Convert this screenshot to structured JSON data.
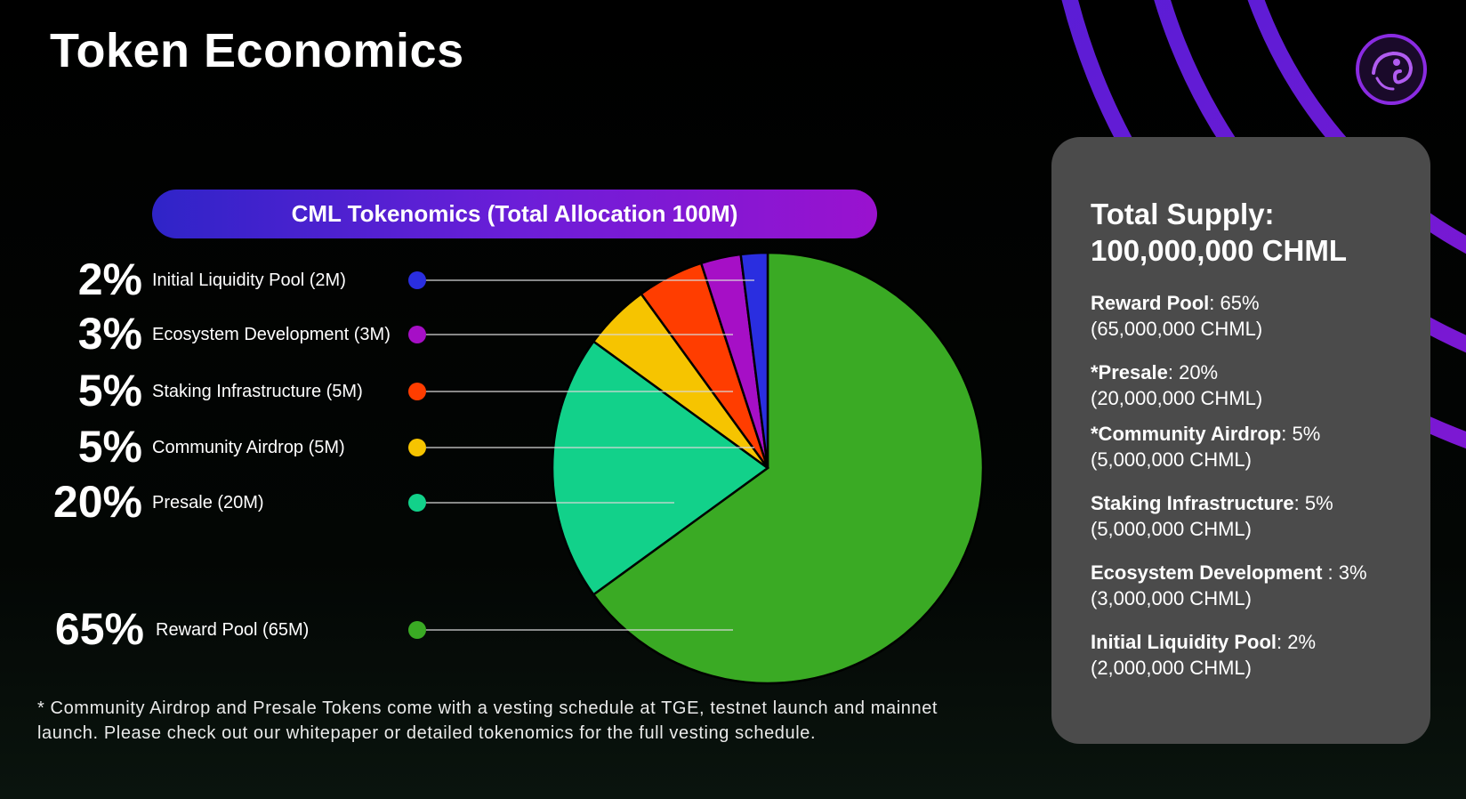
{
  "title": "Token Economics",
  "colors": {
    "banner_start": "#2f24c8",
    "banner_end": "#9a12cf",
    "panel_bg": "#4b4b4b",
    "arc": "#5a1fd0"
  },
  "logo_icon": "chameleon-logo-icon",
  "chart_data": {
    "type": "pie",
    "title": "CML Tokenomics (Total Allocation 100M)",
    "total": "100M",
    "slices": [
      {
        "label": "Reward Pool (65M)",
        "percent_label": "65%",
        "value": 65,
        "color": "#3aaa24"
      },
      {
        "label": "Presale (20M)",
        "percent_label": "20%",
        "value": 20,
        "color": "#12d18a"
      },
      {
        "label": "Community Airdrop (5M)",
        "percent_label": "5%",
        "value": 5,
        "color": "#f6c400"
      },
      {
        "label": "Staking Infrastructure (5M)",
        "percent_label": "5%",
        "value": 5,
        "color": "#ff3d00"
      },
      {
        "label": "Ecosystem Development (3M)",
        "percent_label": "3%",
        "value": 3,
        "color": "#a60fc6"
      },
      {
        "label": "Initial Liquidity Pool (2M)",
        "percent_label": "2%",
        "value": 2,
        "color": "#2a2ee0"
      }
    ],
    "legend_order": [
      5,
      4,
      3,
      2,
      1,
      0
    ]
  },
  "footnote": "* Community Airdrop and Presale Tokens come with a vesting schedule at TGE, testnet launch and mainnet launch. Please check out our whitepaper or detailed tokenomics for the full vesting schedule.",
  "supply_panel": {
    "title": "Total Supply:\n100,000,000 CHML",
    "title_line1": "Total Supply:",
    "title_line2": "100,000,000 CHML",
    "items": [
      {
        "name": "Reward Pool",
        "value": ": 65%",
        "amount": "(65,000,000 CHML)"
      },
      {
        "name": "*Presale",
        "value": ": 20%",
        "amount": "(20,000,000 CHML)"
      },
      {
        "name": "*Community Airdrop",
        "value": ": 5%",
        "amount": "(5,000,000 CHML)"
      },
      {
        "name": "Staking Infrastructure",
        "value": ": 5%",
        "amount": "(5,000,000 CHML)"
      },
      {
        "name": "Ecosystem Development",
        "value": " : 3%",
        "amount": "(3,000,000 CHML)"
      },
      {
        "name": "Initial Liquidity Pool",
        "value": ": 2%",
        "amount": "(2,000,000 CHML)"
      }
    ]
  }
}
